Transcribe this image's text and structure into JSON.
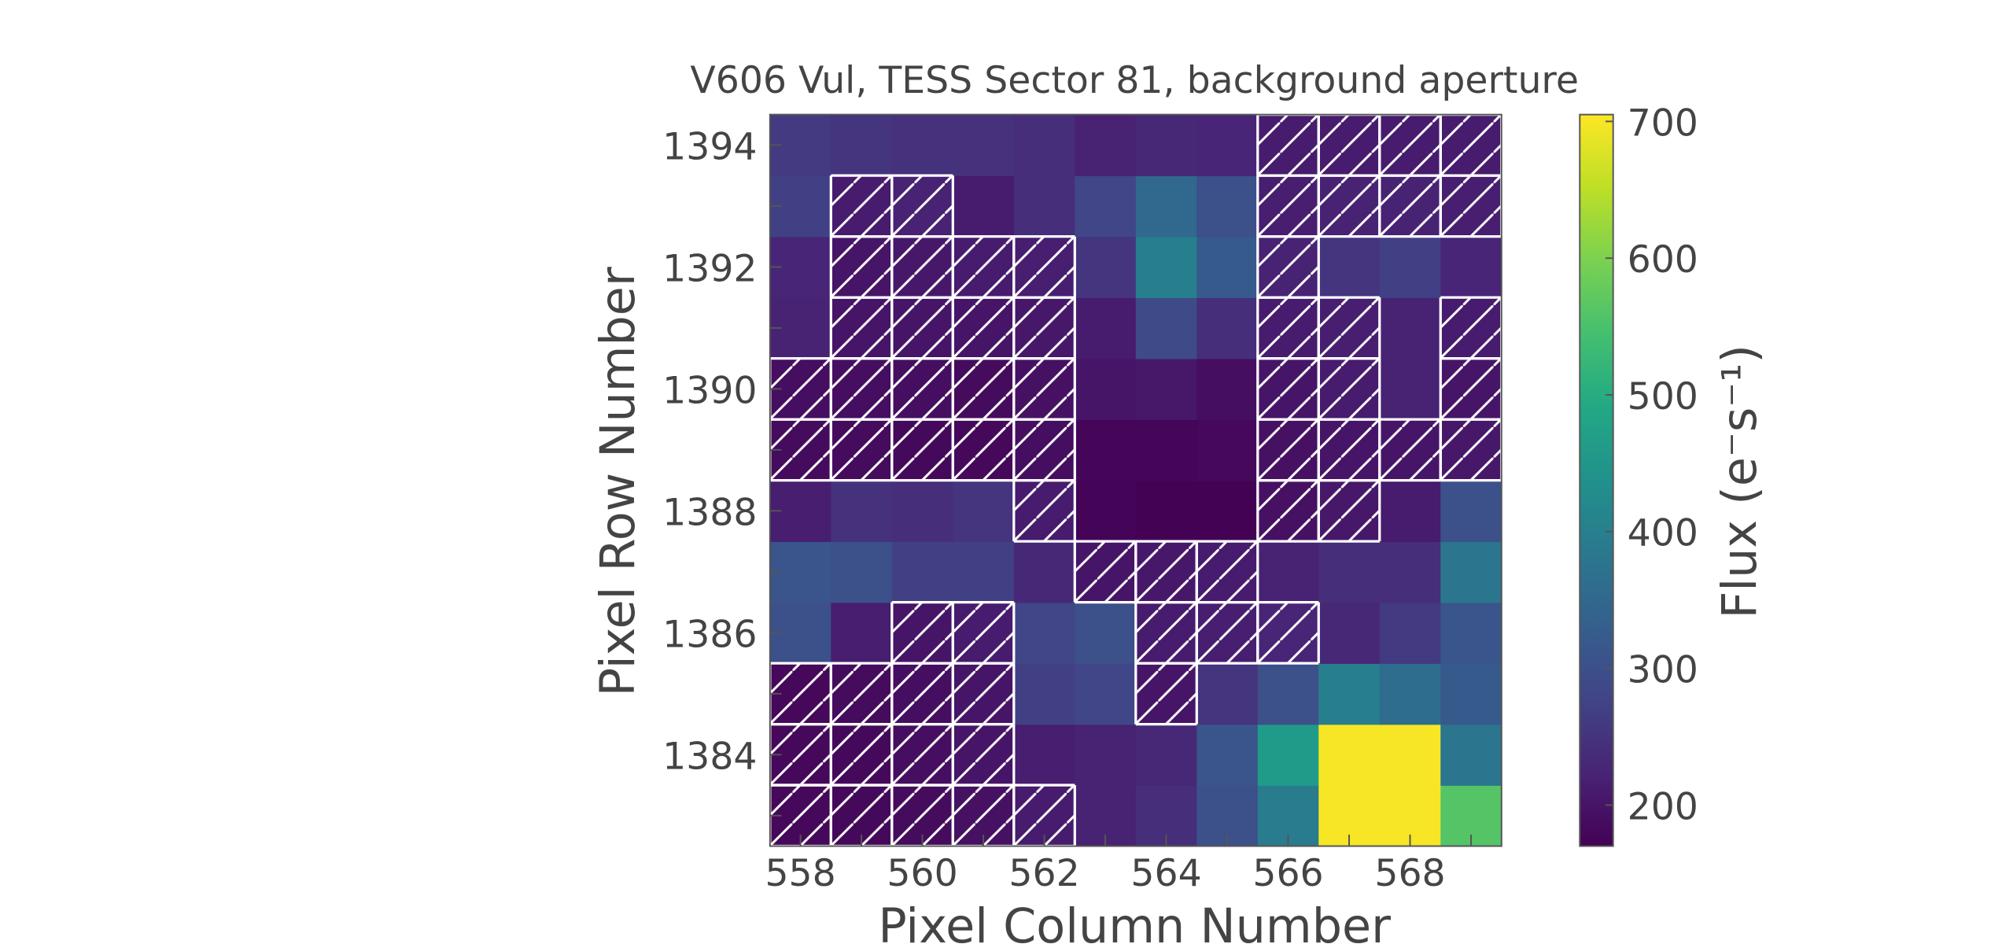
{
  "chart_data": {
    "type": "heatmap",
    "title": "V606 Vul, TESS Sector 81, background aperture",
    "xlabel": "Pixel Column Number",
    "ylabel": "Pixel Row Number",
    "colorbar_label": "Flux (e⁻s⁻¹)",
    "colormap": "viridis",
    "clim": [
      170,
      705
    ],
    "colorbar_ticks": [
      "200",
      "300",
      "400",
      "500",
      "600",
      "700"
    ],
    "x_ticks": [
      "558",
      "560",
      "562",
      "564",
      "566",
      "568"
    ],
    "y_ticks": [
      "1384",
      "1386",
      "1388",
      "1390",
      "1392",
      "1394"
    ],
    "columns": [
      558,
      559,
      560,
      561,
      562,
      563,
      564,
      565,
      566,
      567,
      568,
      569
    ],
    "rows": [
      1383,
      1384,
      1385,
      1386,
      1387,
      1388,
      1389,
      1390,
      1391,
      1392,
      1393,
      1394
    ],
    "flux_rows_bottom_to_top": [
      [
        180,
        182,
        185,
        195,
        210,
        220,
        240,
        300,
        390,
        700,
        700,
        560
      ],
      [
        180,
        182,
        190,
        200,
        215,
        220,
        230,
        310,
        460,
        700,
        700,
        380
      ],
      [
        180,
        185,
        190,
        200,
        270,
        280,
        200,
        250,
        300,
        400,
        360,
        320
      ],
      [
        300,
        215,
        200,
        210,
        280,
        300,
        210,
        215,
        225,
        230,
        260,
        310
      ],
      [
        310,
        300,
        270,
        270,
        230,
        200,
        205,
        210,
        220,
        240,
        240,
        380
      ],
      [
        215,
        245,
        240,
        250,
        210,
        175,
        172,
        172,
        195,
        205,
        210,
        300
      ],
      [
        185,
        185,
        182,
        180,
        190,
        178,
        178,
        180,
        195,
        200,
        200,
        205
      ],
      [
        190,
        190,
        190,
        185,
        195,
        200,
        205,
        190,
        200,
        210,
        220,
        200
      ],
      [
        220,
        200,
        200,
        200,
        205,
        210,
        290,
        240,
        210,
        215,
        220,
        210
      ],
      [
        225,
        200,
        205,
        210,
        215,
        250,
        400,
        320,
        220,
        250,
        270,
        225
      ],
      [
        270,
        210,
        220,
        210,
        240,
        280,
        350,
        300,
        215,
        220,
        220,
        215
      ],
      [
        260,
        250,
        245,
        245,
        240,
        220,
        230,
        225,
        210,
        210,
        210,
        210
      ]
    ],
    "background_aperture_rows_bottom_to_top": [
      [
        1,
        1,
        1,
        1,
        1,
        0,
        0,
        0,
        0,
        0,
        0,
        0
      ],
      [
        1,
        1,
        1,
        1,
        0,
        0,
        0,
        0,
        0,
        0,
        0,
        0
      ],
      [
        1,
        1,
        1,
        1,
        0,
        0,
        1,
        0,
        0,
        0,
        0,
        0
      ],
      [
        0,
        0,
        1,
        1,
        0,
        0,
        1,
        1,
        1,
        0,
        0,
        0
      ],
      [
        0,
        0,
        0,
        0,
        0,
        1,
        1,
        1,
        0,
        0,
        0,
        0
      ],
      [
        0,
        0,
        0,
        0,
        1,
        0,
        0,
        0,
        1,
        1,
        0,
        0
      ],
      [
        1,
        1,
        1,
        1,
        1,
        0,
        0,
        0,
        1,
        1,
        1,
        1
      ],
      [
        1,
        1,
        1,
        1,
        1,
        0,
        0,
        0,
        1,
        1,
        0,
        1
      ],
      [
        0,
        1,
        1,
        1,
        1,
        0,
        0,
        0,
        1,
        1,
        0,
        1
      ],
      [
        0,
        1,
        1,
        1,
        1,
        0,
        0,
        0,
        1,
        0,
        0,
        0
      ],
      [
        0,
        1,
        1,
        0,
        0,
        0,
        0,
        0,
        1,
        1,
        1,
        1
      ],
      [
        0,
        0,
        0,
        0,
        0,
        0,
        0,
        0,
        1,
        1,
        1,
        1
      ]
    ]
  }
}
